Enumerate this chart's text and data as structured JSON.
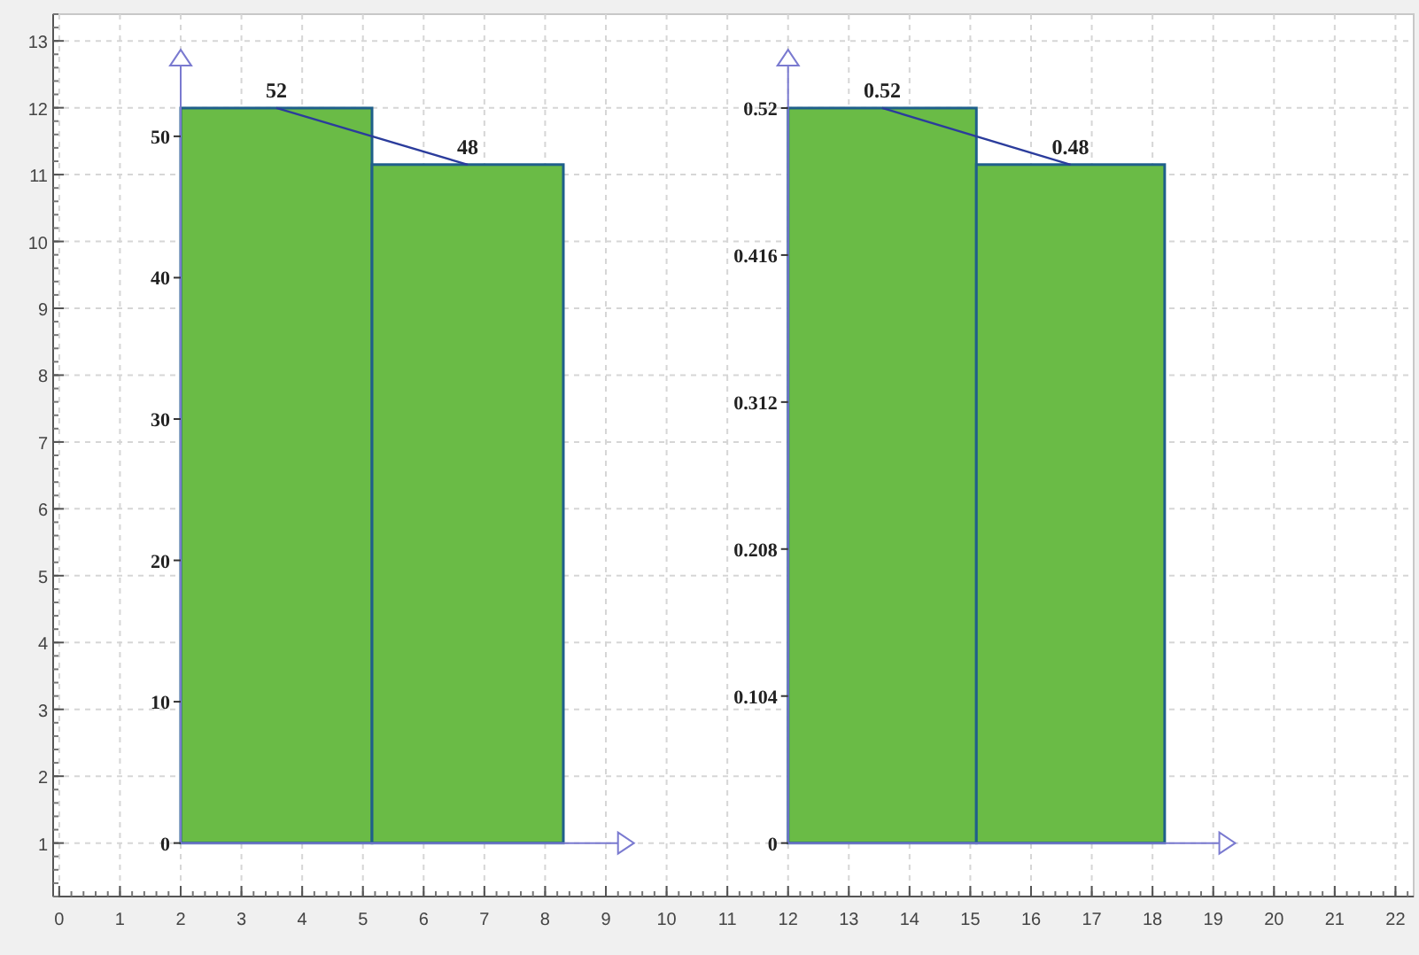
{
  "chart_data": [
    {
      "type": "scatter",
      "xlim": [
        -0.1,
        22.3
      ],
      "ylim": [
        0.2,
        13.4
      ],
      "xticks": [
        0,
        1,
        2,
        3,
        4,
        5,
        6,
        7,
        8,
        9,
        10,
        11,
        12,
        13,
        14,
        15,
        16,
        17,
        18,
        19,
        20,
        21,
        22
      ],
      "yticks": [
        1,
        2,
        3,
        4,
        5,
        6,
        7,
        8,
        9,
        10,
        11,
        12,
        13
      ],
      "grid": true
    },
    {
      "type": "bar",
      "categories": [
        null,
        null
      ],
      "series": [
        {
          "type": "bar",
          "color": "#6abb46",
          "values": [
            52,
            48
          ],
          "value_labels": [
            "52",
            "48"
          ]
        },
        {
          "type": "line",
          "color": "#2b3c9c",
          "values": [
            52,
            48
          ]
        }
      ],
      "ylim": [
        0,
        55
      ],
      "yticks": [
        0,
        10,
        20,
        30,
        40,
        50
      ],
      "tick_labels": "y",
      "marker": "none"
    },
    {
      "type": "bar",
      "categories": [
        null,
        null
      ],
      "series": [
        {
          "type": "bar",
          "color": "#6abb46",
          "values": [
            0.52,
            0.48
          ],
          "value_labels": [
            "0.52",
            "0.48"
          ]
        },
        {
          "type": "line",
          "color": "#2b3c9c",
          "values": [
            0.52,
            0.48
          ]
        }
      ],
      "ylim": [
        0,
        0.55
      ],
      "yticks": [
        0,
        0.104,
        0.208,
        0.312,
        0.416,
        0.52
      ],
      "tick_labels": "y",
      "marker": "none"
    }
  ]
}
